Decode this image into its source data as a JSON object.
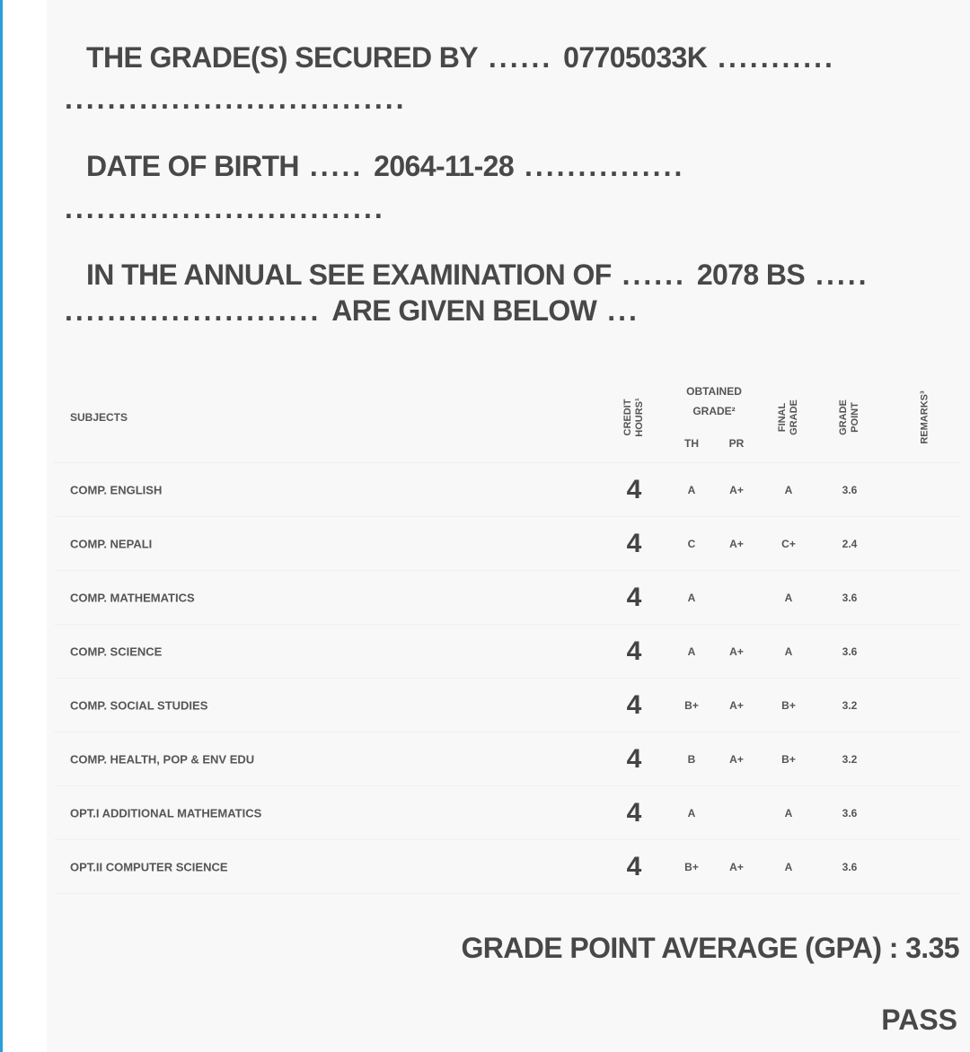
{
  "header": {
    "secured_by_label": "THE GRADE(S) SECURED BY",
    "symbol_no": "07705033K",
    "dob_label": "DATE OF BIRTH",
    "dob": "2064-11-28",
    "exam_label": "IN THE ANNUAL SEE EXAMINATION OF",
    "exam_year": "2078 BS",
    "given_below": "ARE GIVEN BELOW"
  },
  "table": {
    "headers": {
      "subjects": "SUBJECTS",
      "credit": "CREDIT HOURS¹",
      "obtained": "OBTAINED GRADE²",
      "th": "TH",
      "pr": "PR",
      "final": "FINAL GRADE",
      "gp": "GRADE POINT",
      "remarks": "REMARKS³"
    },
    "rows": [
      {
        "subject": "COMP. ENGLISH",
        "credit": "4",
        "th": "A",
        "pr": "A+",
        "final": "A",
        "gp": "3.6"
      },
      {
        "subject": "COMP. NEPALI",
        "credit": "4",
        "th": "C",
        "pr": "A+",
        "final": "C+",
        "gp": "2.4"
      },
      {
        "subject": "COMP. MATHEMATICS",
        "credit": "4",
        "th": "A",
        "pr": "",
        "final": "A",
        "gp": "3.6"
      },
      {
        "subject": "COMP. SCIENCE",
        "credit": "4",
        "th": "A",
        "pr": "A+",
        "final": "A",
        "gp": "3.6"
      },
      {
        "subject": "COMP. SOCIAL STUDIES",
        "credit": "4",
        "th": "B+",
        "pr": "A+",
        "final": "B+",
        "gp": "3.2"
      },
      {
        "subject": "COMP. HEALTH, POP & ENV EDU",
        "credit": "4",
        "th": "B",
        "pr": "A+",
        "final": "B+",
        "gp": "3.2"
      },
      {
        "subject": "OPT.I ADDITIONAL MATHEMATICS",
        "credit": "4",
        "th": "A",
        "pr": "",
        "final": "A",
        "gp": "3.6"
      },
      {
        "subject": "OPT.II COMPUTER SCIENCE",
        "credit": "4",
        "th": "B+",
        "pr": "A+",
        "final": "A",
        "gp": "3.6"
      }
    ]
  },
  "summary": {
    "gpa_label": "GRADE POINT AVERAGE (GPA) :",
    "gpa": "3.35",
    "result": "PASS"
  }
}
